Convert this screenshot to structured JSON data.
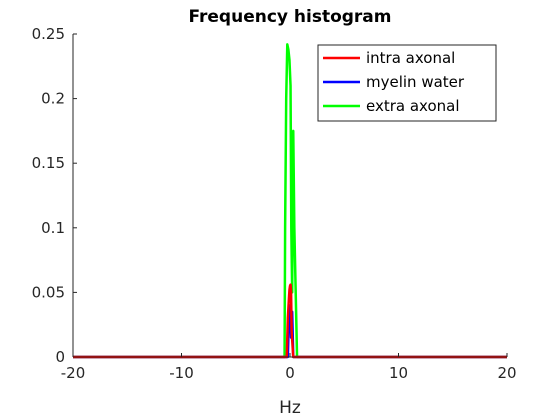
{
  "chart_data": {
    "type": "line",
    "title": "Frequency histogram",
    "xlabel": "Hz",
    "ylabel": "",
    "xlim": [
      -20,
      20
    ],
    "ylim": [
      0,
      0.25
    ],
    "xticks": [
      -20,
      -10,
      0,
      10,
      20
    ],
    "xtick_labels": [
      "-20",
      "-10",
      "0",
      "10",
      "20"
    ],
    "yticks": [
      0,
      0.05,
      0.1,
      0.15,
      0.2,
      0.25
    ],
    "ytick_labels": [
      "0",
      "0.05",
      "0.1",
      "0.15",
      "0.2",
      "0.25"
    ],
    "grid": false,
    "legend_position": "top-right",
    "series": [
      {
        "name": "intra axonal",
        "color": "#ff0000",
        "x": [
          -20,
          -0.3,
          -0.2,
          -0.1,
          -0.05,
          0.0,
          0.05,
          0.1,
          0.15,
          0.3,
          20
        ],
        "y": [
          0,
          0,
          0.03,
          0.045,
          0.052,
          0.055,
          0.056,
          0.05,
          0.02,
          0,
          0
        ]
      },
      {
        "name": "myelin water",
        "color": "#0000ff",
        "x": [
          -20,
          -0.2,
          -0.1,
          0.0,
          0.05,
          0.1,
          0.2,
          0.3,
          20
        ],
        "y": [
          0,
          0,
          0.03,
          0.04,
          0.04,
          0.015,
          0.035,
          0,
          0
        ]
      },
      {
        "name": "extra axonal",
        "color": "#00ff00",
        "x": [
          -20,
          -0.5,
          -0.45,
          -0.35,
          -0.25,
          -0.15,
          -0.05,
          0.05,
          0.12,
          0.2,
          0.3,
          0.4,
          0.55,
          0.65,
          20
        ],
        "y": [
          0,
          0,
          0.1,
          0.2,
          0.242,
          0.238,
          0.23,
          0.21,
          0.1,
          0.05,
          0.175,
          0.1,
          0.04,
          0,
          0
        ]
      }
    ]
  }
}
